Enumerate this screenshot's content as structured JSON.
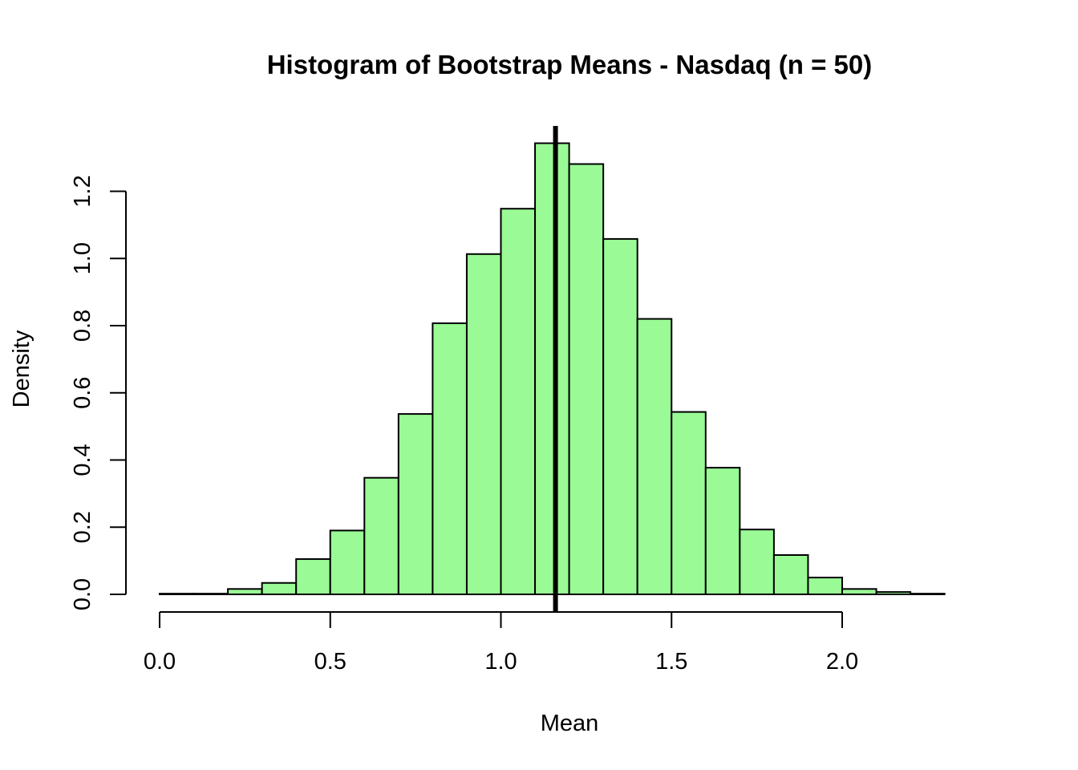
{
  "chart_data": {
    "type": "bar",
    "subtype": "histogram",
    "title": "Histogram of Bootstrap Means - Nasdaq (n = 50)",
    "xlabel": "Mean",
    "ylabel": "Density",
    "bins": [
      {
        "x0": 0.0,
        "x1": 0.1,
        "density": 0.002
      },
      {
        "x0": 0.1,
        "x1": 0.2,
        "density": 0.002
      },
      {
        "x0": 0.2,
        "x1": 0.3,
        "density": 0.016
      },
      {
        "x0": 0.3,
        "x1": 0.4,
        "density": 0.034
      },
      {
        "x0": 0.4,
        "x1": 0.5,
        "density": 0.105
      },
      {
        "x0": 0.5,
        "x1": 0.6,
        "density": 0.19
      },
      {
        "x0": 0.6,
        "x1": 0.7,
        "density": 0.347
      },
      {
        "x0": 0.7,
        "x1": 0.8,
        "density": 0.537
      },
      {
        "x0": 0.8,
        "x1": 0.9,
        "density": 0.807
      },
      {
        "x0": 0.9,
        "x1": 1.0,
        "density": 1.013
      },
      {
        "x0": 1.0,
        "x1": 1.1,
        "density": 1.148
      },
      {
        "x0": 1.1,
        "x1": 1.2,
        "density": 1.343
      },
      {
        "x0": 1.2,
        "x1": 1.3,
        "density": 1.281
      },
      {
        "x0": 1.3,
        "x1": 1.4,
        "density": 1.058
      },
      {
        "x0": 1.4,
        "x1": 1.5,
        "density": 0.82
      },
      {
        "x0": 1.5,
        "x1": 1.6,
        "density": 0.543
      },
      {
        "x0": 1.6,
        "x1": 1.7,
        "density": 0.377
      },
      {
        "x0": 1.7,
        "x1": 1.8,
        "density": 0.193
      },
      {
        "x0": 1.8,
        "x1": 1.9,
        "density": 0.117
      },
      {
        "x0": 1.9,
        "x1": 2.0,
        "density": 0.05
      },
      {
        "x0": 2.0,
        "x1": 2.1,
        "density": 0.016
      },
      {
        "x0": 2.1,
        "x1": 2.2,
        "density": 0.007
      },
      {
        "x0": 2.2,
        "x1": 2.3,
        "density": 0.002
      },
      {
        "x0": 2.3,
        "x1": 2.4,
        "density": 0.0
      }
    ],
    "mean_line_x": 1.16,
    "x_ticks": [
      0.0,
      0.5,
      1.0,
      1.5,
      2.0
    ],
    "x_tick_labels": [
      "0.0",
      "0.5",
      "1.0",
      "1.5",
      "2.0"
    ],
    "y_ticks": [
      0.0,
      0.2,
      0.4,
      0.6,
      0.8,
      1.0,
      1.2
    ],
    "y_tick_labels": [
      "0.0",
      "0.2",
      "0.4",
      "0.6",
      "0.8",
      "1.0",
      "1.2"
    ],
    "xlim": [
      0.0,
      2.4
    ],
    "ylim": [
      0.0,
      1.4
    ],
    "bar_color": "#9AFA96",
    "grid": false,
    "legend": "none"
  }
}
